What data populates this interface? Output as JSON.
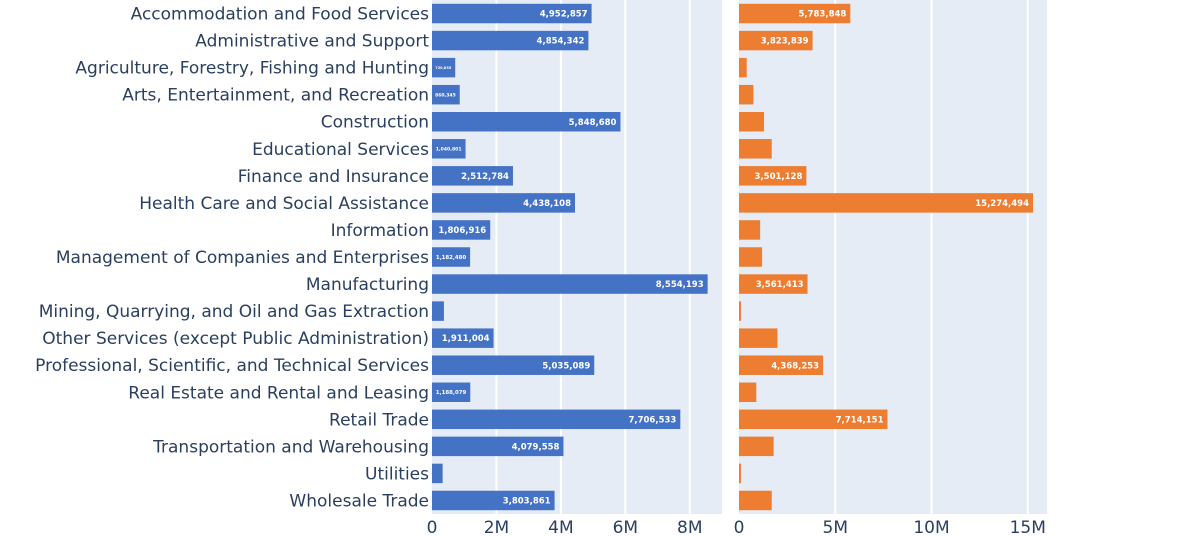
{
  "colors": {
    "plot_bg": "#e5ecf6",
    "grid": "#ffffff",
    "text": "#2a3f5f",
    "series_left": "#4472c4",
    "series_right": "#ed7d31",
    "bar_text": "#ffffff"
  },
  "chart_data": [
    {
      "type": "bar",
      "orientation": "horizontal",
      "categories": [
        "Accommodation and Food Services",
        "Administrative and Support",
        "Agriculture, Forestry, Fishing and Hunting",
        "Arts, Entertainment, and Recreation",
        "Construction",
        "Educational Services",
        "Finance and Insurance",
        "Health Care and Social Assistance",
        "Information",
        "Management of Companies and Enterprises",
        "Manufacturing",
        "Mining, Quarrying, and Oil and Gas Extraction",
        "Other Services (except Public Administration)",
        "Professional, Scientific, and Technical Services",
        "Real Estate and Rental and Leasing",
        "Retail Trade",
        "Transportation and Warehousing",
        "Utilities",
        "Wholesale Trade"
      ],
      "values": [
        4952857,
        4854342,
        720835,
        860345,
        5848680,
        1040801,
        2512784,
        4438108,
        1806916,
        1182480,
        8554193,
        370000,
        1911004,
        5035089,
        1188079,
        7706533,
        4079558,
        330000,
        3803861
      ],
      "value_labels": [
        "4,952,857",
        "4,854,342",
        "720,835",
        "860,345",
        "5,848,680",
        "1,040,801",
        "2,512,784",
        "4,438,108",
        "1,806,916",
        "1,182,480",
        "8,554,193",
        "",
        "1,911,004",
        "5,035,089",
        "1,188,079",
        "7,706,533",
        "4,079,558",
        "",
        "3,803,861"
      ],
      "xlim": [
        0,
        9000000
      ],
      "xticks": [
        0,
        2000000,
        4000000,
        6000000,
        8000000
      ],
      "xtick_labels": [
        "0",
        "2M",
        "4M",
        "6M",
        "8M"
      ],
      "grid": true
    },
    {
      "type": "bar",
      "orientation": "horizontal",
      "values": [
        5783000,
        3823000,
        400000,
        750000,
        1300000,
        1700000,
        3501000,
        15274000,
        1100000,
        1200000,
        3561000,
        100000,
        2000000,
        4368000,
        900000,
        7714000,
        1800000,
        100000,
        1700000
      ],
      "value_labels": [
        "5,783,848",
        "3,823,839",
        "",
        "",
        "",
        "",
        "3,501,128",
        "15,274,494",
        "",
        "",
        "3,561,413",
        "",
        "",
        "4,368,253",
        "",
        "7,714,151",
        "",
        "",
        ""
      ],
      "xlim": [
        0,
        16000000
      ],
      "xticks": [
        0,
        5000000,
        10000000,
        15000000
      ],
      "xtick_labels": [
        "0",
        "5M",
        "10M",
        "15M"
      ],
      "grid": true
    }
  ]
}
